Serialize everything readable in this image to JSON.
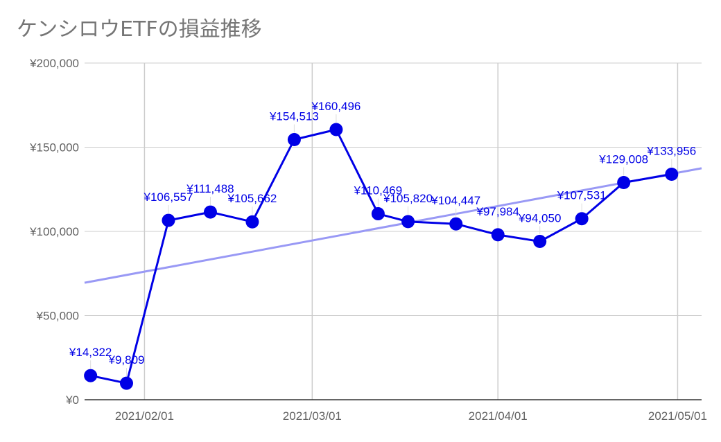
{
  "chart_data": {
    "type": "line",
    "title": "ケンシロウETFの損益推移",
    "xlabel": "",
    "ylabel": "",
    "y_ticks": [
      "¥0",
      "¥50,000",
      "¥100,000",
      "¥150,000",
      "¥200,000"
    ],
    "y_tick_values": [
      0,
      50000,
      100000,
      150000,
      200000
    ],
    "ylim": [
      0,
      200000
    ],
    "xlim": [
      "2021-01-22",
      "2021-05-05"
    ],
    "x_ticks": [
      "2021/02/01",
      "2021/03/01",
      "2021/04/01",
      "2021/05/01"
    ],
    "x_tick_dates": [
      "2021-02-01",
      "2021-03-01",
      "2021-04-01",
      "2021-05-01"
    ],
    "grid": true,
    "legend": "none",
    "colors": {
      "series": "#0000e6",
      "trendline": "#9999f5",
      "grid": "#cccccc",
      "axis": "#333333"
    },
    "series": [
      {
        "x": [
          "2021-01-23",
          "2021-01-29",
          "2021-02-05",
          "2021-02-12",
          "2021-02-19",
          "2021-02-26",
          "2021-03-05",
          "2021-03-12",
          "2021-03-17",
          "2021-03-25",
          "2021-04-01",
          "2021-04-08",
          "2021-04-15",
          "2021-04-22",
          "2021-04-30"
        ],
        "values": [
          14322,
          9809,
          106557,
          111488,
          105662,
          154513,
          160496,
          110469,
          105820,
          104447,
          97984,
          94050,
          107531,
          129008,
          133956
        ],
        "labels": [
          "¥14,322",
          "¥9,809",
          "¥106,557",
          "¥111,488",
          "¥105,662",
          "¥154,513",
          "¥160,496",
          "¥110,469",
          "¥105,820",
          "¥104,447",
          "¥97,984",
          "¥94,050",
          "¥107,531",
          "¥129,008",
          "¥133,956"
        ]
      }
    ],
    "trendline": {
      "type": "linear",
      "start": [
        "2021-01-22",
        69500
      ],
      "end": [
        "2021-05-05",
        137500
      ]
    }
  }
}
